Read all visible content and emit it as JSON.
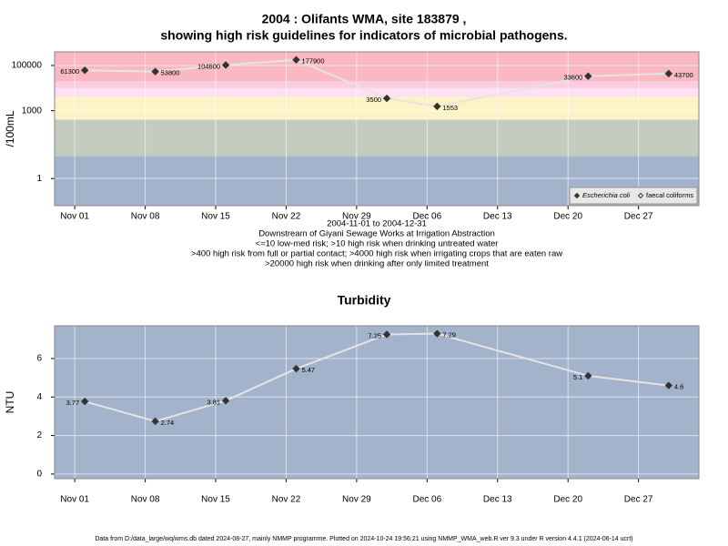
{
  "chart_data": [
    {
      "type": "line",
      "title": [
        "2004 : Olifants WMA, site 183879 ,",
        "showing high risk guidelines for indicators of microbial pathogens."
      ],
      "ylabel": "/100mL",
      "log_scale": true,
      "x": [
        "2004-11-02",
        "2004-11-09",
        "2004-11-16",
        "2004-11-23",
        "2004-12-02",
        "2004-12-07",
        "2004-12-22",
        "2004-12-30"
      ],
      "xlim": [
        "2004-10-30",
        "2005-01-02"
      ],
      "xticks": [
        {
          "value": "2004-11-01",
          "label": "Nov 01"
        },
        {
          "value": "2004-11-08",
          "label": "Nov 08"
        },
        {
          "value": "2004-11-15",
          "label": "Nov 15"
        },
        {
          "value": "2004-11-22",
          "label": "Nov 22"
        },
        {
          "value": "2004-11-29",
          "label": "Nov 29"
        },
        {
          "value": "2004-12-06",
          "label": "Dec 06"
        },
        {
          "value": "2004-12-13",
          "label": "Dec 13"
        },
        {
          "value": "2004-12-20",
          "label": "Dec 20"
        },
        {
          "value": "2004-12-27",
          "label": "Dec 27"
        }
      ],
      "ylim": [
        0.063,
        400000
      ],
      "yticks": [
        1,
        1000,
        100000
      ],
      "band_edges": [
        10,
        400,
        4000,
        10000,
        20000
      ],
      "band_colors": [
        "#a3b3cc",
        "#c3ccbf",
        "#fdf3c6",
        "#fde0f2",
        "#fbcde0",
        "#f9b8c2"
      ],
      "grid": true,
      "line_color": "#e4e4e4",
      "legend": "bottom-right",
      "series": [
        {
          "name": "Escherichia coli",
          "color": "#333333",
          "values": [
            61300,
            53800,
            104600,
            177900,
            3500,
            1553,
            33600,
            43700
          ]
        },
        {
          "name": "faecal coliforms",
          "color": "#ffffff",
          "values": [
            null,
            null,
            null,
            null,
            null,
            null,
            null,
            null
          ]
        }
      ],
      "notes": [
        "2004-11-01 to 2004-12-31",
        "Downstream of Giyani Sewage Works at Irrigation Abstraction",
        "<=10 low-med risk; >10 high risk when drinking untreated water",
        ">400 high risk from full or partial contact; >4000 high risk when irrigating crops that are eaten raw",
        ">20000 high risk when drinking after only limited treatment"
      ]
    },
    {
      "type": "line",
      "title": [
        "Turbidity"
      ],
      "ylabel": "NTU",
      "log_scale": false,
      "x": [
        "2004-11-02",
        "2004-11-09",
        "2004-11-16",
        "2004-11-23",
        "2004-12-02",
        "2004-12-07",
        "2004-12-22",
        "2004-12-30"
      ],
      "xlim": [
        "2004-10-30",
        "2005-01-02"
      ],
      "xticks": [
        {
          "value": "2004-11-01",
          "label": "Nov 01"
        },
        {
          "value": "2004-11-08",
          "label": "Nov 08"
        },
        {
          "value": "2004-11-15",
          "label": "Nov 15"
        },
        {
          "value": "2004-11-22",
          "label": "Nov 22"
        },
        {
          "value": "2004-11-29",
          "label": "Nov 29"
        },
        {
          "value": "2004-12-06",
          "label": "Dec 06"
        },
        {
          "value": "2004-12-13",
          "label": "Dec 13"
        },
        {
          "value": "2004-12-20",
          "label": "Dec 20"
        },
        {
          "value": "2004-12-27",
          "label": "Dec 27"
        }
      ],
      "ylim": [
        -0.24,
        7.7
      ],
      "yticks": [
        0,
        2,
        4,
        6
      ],
      "band_colors": [
        "#a3b3cc"
      ],
      "grid": true,
      "line_color": "#e4e4e4",
      "series": [
        {
          "name": "NTU",
          "color": "#333333",
          "values": [
            3.77,
            2.74,
            3.81,
            5.47,
            7.25,
            7.29,
            5.1,
            4.6
          ]
        }
      ]
    }
  ],
  "footer": "Data from D:/data_large/wq/wms.db dated 2024-08-27, mainly NMMP programme. Plotted on 2024-10-24 19:56:21 using NMMP_WMA_web.R ver 9.3 under R version 4.4.1 (2024-06-14 ucrt)"
}
